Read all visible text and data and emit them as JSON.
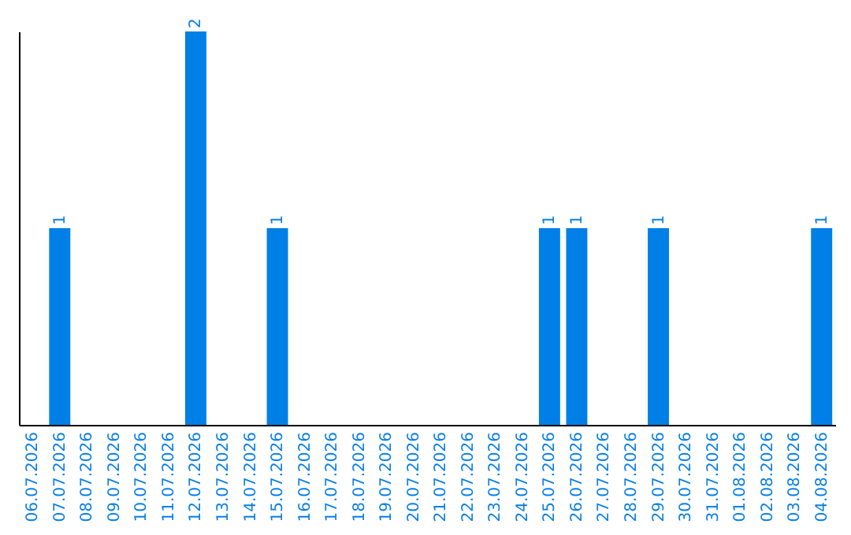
{
  "chart_data": {
    "type": "bar",
    "categories": [
      "06.07.2026",
      "07.07.2026",
      "08.07.2026",
      "09.07.2026",
      "10.07.2026",
      "11.07.2026",
      "12.07.2026",
      "13.07.2026",
      "14.07.2026",
      "15.07.2026",
      "16.07.2026",
      "17.07.2026",
      "18.07.2026",
      "19.07.2026",
      "20.07.2026",
      "21.07.2026",
      "22.07.2026",
      "23.07.2026",
      "24.07.2026",
      "25.07.2026",
      "26.07.2026",
      "27.07.2026",
      "28.07.2026",
      "29.07.2026",
      "30.07.2026",
      "31.07.2026",
      "01.08.2026",
      "02.08.2026",
      "03.08.2026",
      "04.08.2026"
    ],
    "values": [
      0,
      1,
      0,
      0,
      0,
      0,
      2,
      0,
      0,
      1,
      0,
      0,
      0,
      0,
      0,
      0,
      0,
      0,
      0,
      1,
      1,
      0,
      0,
      1,
      0,
      0,
      0,
      0,
      0,
      1
    ],
    "value_labels": [
      null,
      "1",
      null,
      null,
      null,
      null,
      "2",
      null,
      null,
      "1",
      null,
      null,
      null,
      null,
      null,
      null,
      null,
      null,
      null,
      "1",
      "1",
      null,
      null,
      "1",
      null,
      null,
      null,
      null,
      null,
      "1"
    ],
    "color": "#0080e6",
    "grid": false
  }
}
